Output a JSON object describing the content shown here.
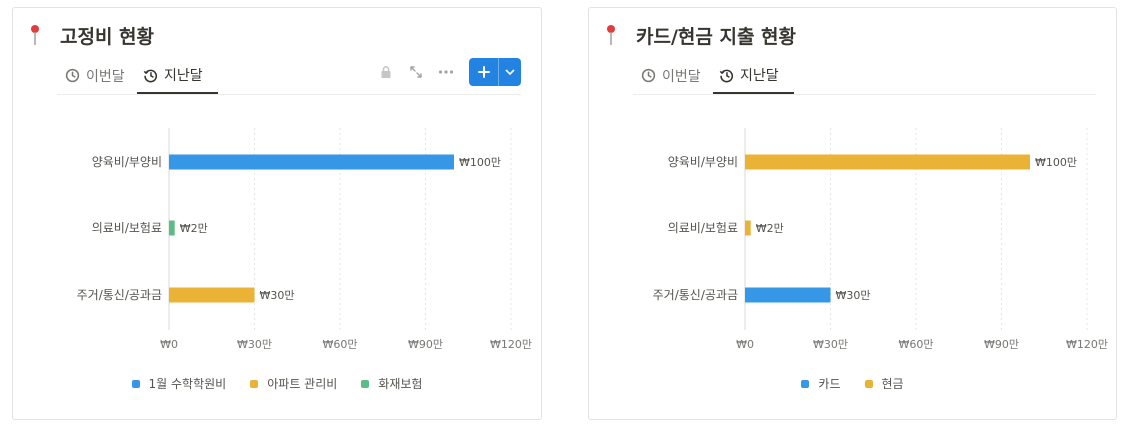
{
  "colors": {
    "blue": "#3597e5",
    "yellow": "#eab335",
    "green": "#5dbb87",
    "accent": "#2383e2"
  },
  "left": {
    "title": "고정비 현황",
    "pin_icon": "pushpin-icon",
    "tabs": [
      {
        "label": "이번달",
        "icon": "clock-icon",
        "active": false
      },
      {
        "label": "지난달",
        "icon": "history-icon",
        "active": true
      }
    ],
    "toolbar": [
      "lock-icon",
      "expand-icon",
      "more-icon",
      "add-button"
    ]
  },
  "right": {
    "title": "카드/현금 지출 현황",
    "pin_icon": "pushpin-icon",
    "tabs": [
      {
        "label": "이번달",
        "icon": "clock-icon",
        "active": false
      },
      {
        "label": "지난달",
        "icon": "history-icon",
        "active": true
      }
    ]
  },
  "chart_data": [
    {
      "type": "bar",
      "orientation": "horizontal",
      "categories": [
        "양육비/부양비",
        "의료비/보험료",
        "주거/통신/공과금"
      ],
      "series": [
        {
          "name": "1월 수학학원비",
          "color": "#3597e5",
          "values": [
            100,
            0,
            0
          ]
        },
        {
          "name": "아파트 관리비",
          "color": "#eab335",
          "values": [
            0,
            0,
            30
          ]
        },
        {
          "name": "화재보험",
          "color": "#5dbb87",
          "values": [
            0,
            2,
            0
          ]
        }
      ],
      "value_labels": [
        "₩100만",
        "₩2만",
        "₩30만"
      ],
      "xlim": [
        0,
        120
      ],
      "ticks": [
        0,
        30,
        60,
        90,
        120
      ],
      "tick_labels": [
        "₩0",
        "₩30만",
        "₩60만",
        "₩90만",
        "₩120만"
      ],
      "grid": true,
      "legend": "bottom"
    },
    {
      "type": "bar",
      "orientation": "horizontal",
      "categories": [
        "양육비/부양비",
        "의료비/보험료",
        "주거/통신/공과금"
      ],
      "series": [
        {
          "name": "카드",
          "color": "#3597e5",
          "values": [
            0,
            0,
            30
          ]
        },
        {
          "name": "현금",
          "color": "#eab335",
          "values": [
            100,
            2,
            0
          ]
        }
      ],
      "value_labels": [
        "₩100만",
        "₩2만",
        "₩30만"
      ],
      "xlim": [
        0,
        120
      ],
      "ticks": [
        0,
        30,
        60,
        90,
        120
      ],
      "tick_labels": [
        "₩0",
        "₩30만",
        "₩60만",
        "₩90만",
        "₩120만"
      ],
      "grid": true,
      "legend": "bottom"
    }
  ]
}
